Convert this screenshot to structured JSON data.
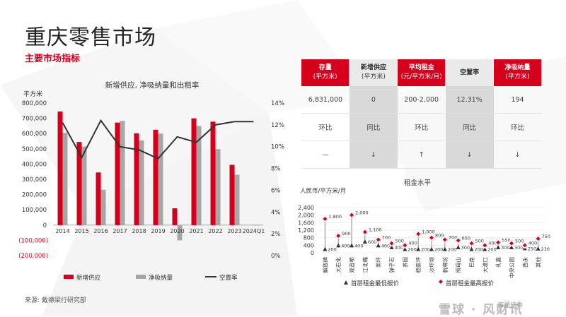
{
  "page": {
    "title": "重庆零售市场",
    "subtitle": "主要市场指标",
    "source": "来源: 戴德梁行研究部",
    "watermark": "雪球 · 风财讯",
    "watermark_small": "海通证券"
  },
  "colors": {
    "red": "#d5001c",
    "grey": "#a6a6a6",
    "dark": "#333333"
  },
  "kpi_table": {
    "headers": [
      {
        "title": "存量",
        "unit": "(平方米)",
        "style": "red"
      },
      {
        "title": "新增供应",
        "unit": "(平方米)",
        "style": "grey"
      },
      {
        "title": "平均租金",
        "unit": "(元/平方米/月)",
        "style": "red"
      },
      {
        "title": "空置率",
        "unit": "",
        "style": "grey"
      },
      {
        "title": "净吸纳量",
        "unit": "(平方米)",
        "style": "red"
      }
    ],
    "values": [
      "6,831,000",
      "0",
      "200-2,000",
      "12.31%",
      "194"
    ],
    "compare_labels": [
      "环比",
      "同比",
      "环比",
      "同比",
      "环比"
    ],
    "trends": [
      "—",
      "↓",
      "↑",
      "↓",
      "↓"
    ]
  },
  "chart_data": [
    {
      "type": "bar",
      "title": "新增供应, 净吸纳量和出租率",
      "ylabel": "平方米",
      "categories": [
        "2014",
        "2015",
        "2016",
        "2017",
        "2018",
        "2019",
        "2020",
        "2021",
        "2022",
        "2023",
        "2024Q1"
      ],
      "ylim": [
        -200000,
        800000
      ],
      "y_ticks": [
        "800,000",
        "700,000",
        "600,000",
        "500,000",
        "400,000",
        "300,000",
        "200,000",
        "100,000",
        "0",
        "(100,000)",
        "(200,000)"
      ],
      "y2lim": [
        0,
        14
      ],
      "y2_ticks": [
        "14%",
        "12%",
        "10%",
        "8%",
        "6%",
        "4%",
        "2%",
        "0%"
      ],
      "series": [
        {
          "name": "新增供应",
          "type": "bar",
          "color": "#d5001c",
          "values": [
            745000,
            545000,
            345000,
            672000,
            602000,
            625000,
            110000,
            700000,
            678000,
            395000,
            0
          ]
        },
        {
          "name": "净吸纳量",
          "type": "bar",
          "color": "#a6a6a6",
          "values": [
            605000,
            515000,
            232000,
            683000,
            555000,
            600000,
            -100000,
            650000,
            498000,
            330000,
            194
          ]
        },
        {
          "name": "空置率",
          "type": "line",
          "color": "#333333",
          "axis": "right",
          "values": [
            12.2,
            9.0,
            12.4,
            10.0,
            9.7,
            8.9,
            10.9,
            10.4,
            12.0,
            12.3,
            12.3
          ]
        }
      ],
      "legend": "bottom"
    },
    {
      "type": "scatter",
      "title": "租金水平",
      "ylabel": "人民币/平方米/月",
      "ylim": [
        0,
        2400
      ],
      "y_ticks": [
        "2,400",
        "2,200",
        "2,000",
        "1,800",
        "1,600",
        "1,400",
        "1,200",
        "1,000",
        "800",
        "600",
        "400",
        "200",
        "0"
      ],
      "categories": [
        "解放碑",
        "大石化",
        "观音桥",
        "江北嘴",
        "南坪",
        "弹子石",
        "茶园",
        "杨家坪",
        "沙坪坝",
        "新牌坊",
        "照母山",
        "巴南",
        "大渡口",
        "礼嘉",
        "中央公园",
        "西永",
        "其他"
      ],
      "series": [
        {
          "name": "首层租金最低报价",
          "marker": "triangle",
          "color": "#333333",
          "values": [
            200,
            400,
            400,
            600,
            400,
            300,
            200,
            200,
            200,
            200,
            300,
            200,
            200,
            300,
            300,
            250,
            230
          ],
          "labels": [
            "200",
            "400",
            "400",
            "600",
            "400",
            "300",
            "200",
            "200",
            "200",
            "200",
            "300",
            "200",
            "200",
            "300",
            "300",
            "250",
            "230"
          ]
        },
        {
          "name": "首层租金最高报价",
          "marker": "diamond",
          "color": "#d5001c",
          "values": [
            1800,
            900,
            2000,
            1100,
            700,
            500,
            400,
            1000,
            800,
            700,
            650,
            500,
            400,
            550,
            500,
            400,
            750
          ],
          "labels": [
            "1,800",
            "900",
            "2,000",
            "1,100",
            "700",
            "500",
            "400",
            "1,000",
            "800",
            "700",
            "650",
            "500",
            "400",
            "550",
            "500",
            "400",
            "750"
          ]
        }
      ],
      "legend": "bottom"
    }
  ]
}
